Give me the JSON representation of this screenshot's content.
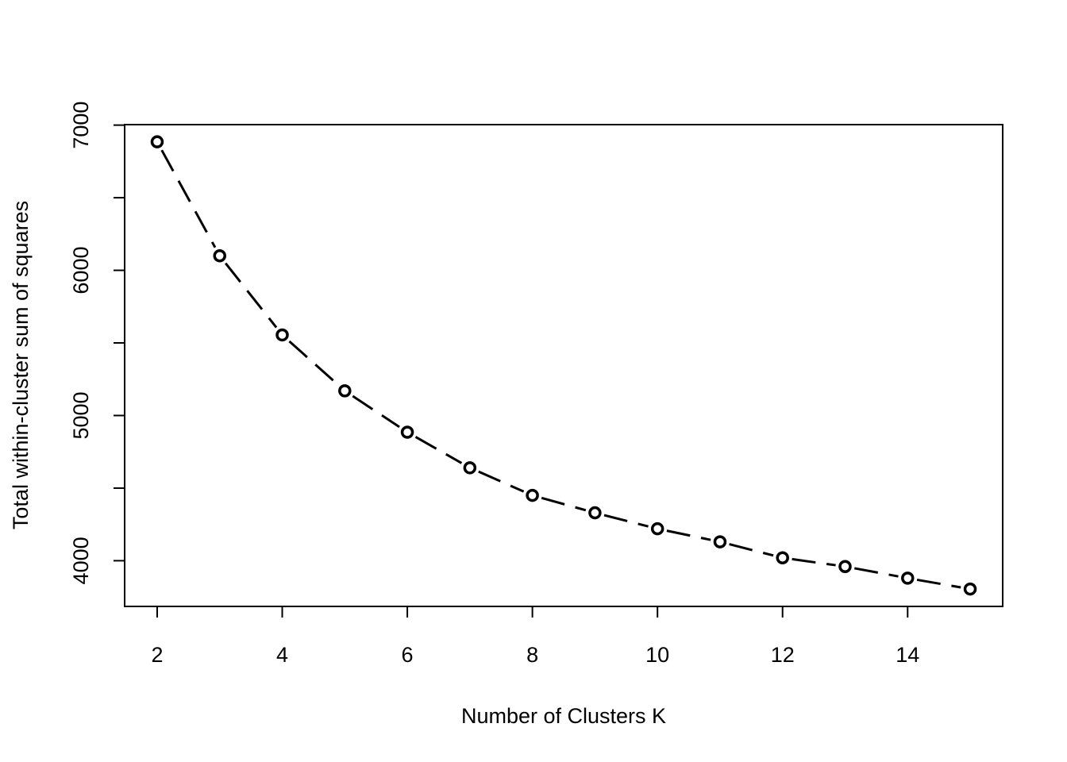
{
  "chart_data": {
    "type": "line",
    "title": "",
    "xlabel": "Number of Clusters K",
    "ylabel": "Total within-cluster sum of squares",
    "x": [
      2,
      3,
      4,
      5,
      6,
      7,
      8,
      9,
      10,
      11,
      12,
      13,
      14,
      15
    ],
    "series": [
      {
        "values": [
          6885,
          6100,
          5555,
          5170,
          4885,
          4640,
          4450,
          4330,
          4220,
          4130,
          4020,
          3960,
          3880,
          3805
        ]
      }
    ],
    "xticks": [
      2,
      4,
      6,
      8,
      10,
      12,
      14
    ],
    "yticks": [
      4000,
      5000,
      6000,
      7000
    ],
    "xtick_labels": [
      "2",
      "4",
      "6",
      "8",
      "10",
      "12",
      "14"
    ],
    "ytick_labels": [
      "4000",
      "5000",
      "6000",
      "7000"
    ],
    "xlim": [
      1.48,
      15.52
    ],
    "ylim": [
      3685.2,
      7003.4
    ],
    "line_style": "dashed",
    "marker": "open-circle",
    "grid": false,
    "legend": "none"
  }
}
